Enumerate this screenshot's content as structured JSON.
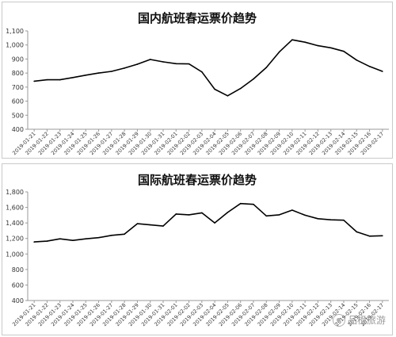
{
  "chart_data": [
    {
      "type": "line",
      "title": "国内航班春运票价趋势",
      "xlabel": "",
      "ylabel": "",
      "ylim": [
        400,
        1100
      ],
      "yticks": [
        "400",
        "500",
        "600",
        "700",
        "800",
        "900",
        "1,000",
        "1,100"
      ],
      "grid": false,
      "legend": "none",
      "line_color": "#000000",
      "categories": [
        "2019-01-21",
        "2019-01-22",
        "2019-01-23",
        "2019-01-24",
        "2019-01-25",
        "2019-01-26",
        "2019-01-27",
        "2019-01-28",
        "2019-01-29",
        "2019-01-30",
        "2019-01-31",
        "2019-02-01",
        "2019-02-02",
        "2019-02-03",
        "2019-02-04",
        "2019-02-05",
        "2019-02-06",
        "2019-02-07",
        "2019-02-08",
        "2019-02-09",
        "2019-02-10",
        "2019-02-11",
        "2019-02-12",
        "2019-02-13",
        "2019-02-14",
        "2019-02-15",
        "2019-02-16",
        "2019-02-17"
      ],
      "values": [
        742,
        752,
        752,
        768,
        785,
        800,
        812,
        835,
        863,
        897,
        880,
        867,
        865,
        808,
        685,
        638,
        690,
        758,
        840,
        950,
        1037,
        1020,
        995,
        980,
        955,
        892,
        847,
        812
      ]
    },
    {
      "type": "line",
      "title": "国际航班春运票价趋势",
      "xlabel": "",
      "ylabel": "",
      "ylim": [
        400,
        1800
      ],
      "yticks": [
        "400",
        "600",
        "800",
        "1,000",
        "1,200",
        "1,400",
        "1,600",
        "1,800"
      ],
      "grid": false,
      "legend": "none",
      "line_color": "#000000",
      "categories": [
        "2019-01-21",
        "2019-01-22",
        "2019-01-23",
        "2019-01-24",
        "2019-01-25",
        "2019-01-26",
        "2019-01-27",
        "2019-01-28",
        "2019-01-29",
        "2019-01-30",
        "2019-01-31",
        "2019-02-01",
        "2019-02-02",
        "2019-02-03",
        "2019-02-04",
        "2019-02-05",
        "2019-02-06",
        "2019-02-07",
        "2019-02-08",
        "2019-02-09",
        "2019-02-10",
        "2019-02-11",
        "2019-02-12",
        "2019-02-13",
        "2019-02-14",
        "2019-02-15",
        "2019-02-16",
        "2019-02-17"
      ],
      "values": [
        1155,
        1165,
        1195,
        1175,
        1195,
        1210,
        1240,
        1255,
        1390,
        1375,
        1360,
        1515,
        1505,
        1530,
        1400,
        1535,
        1650,
        1640,
        1490,
        1505,
        1565,
        1500,
        1455,
        1440,
        1435,
        1285,
        1230,
        1235
      ]
    }
  ],
  "watermark": {
    "text": "品橙旅游",
    "icon": "circle-logo-icon"
  }
}
